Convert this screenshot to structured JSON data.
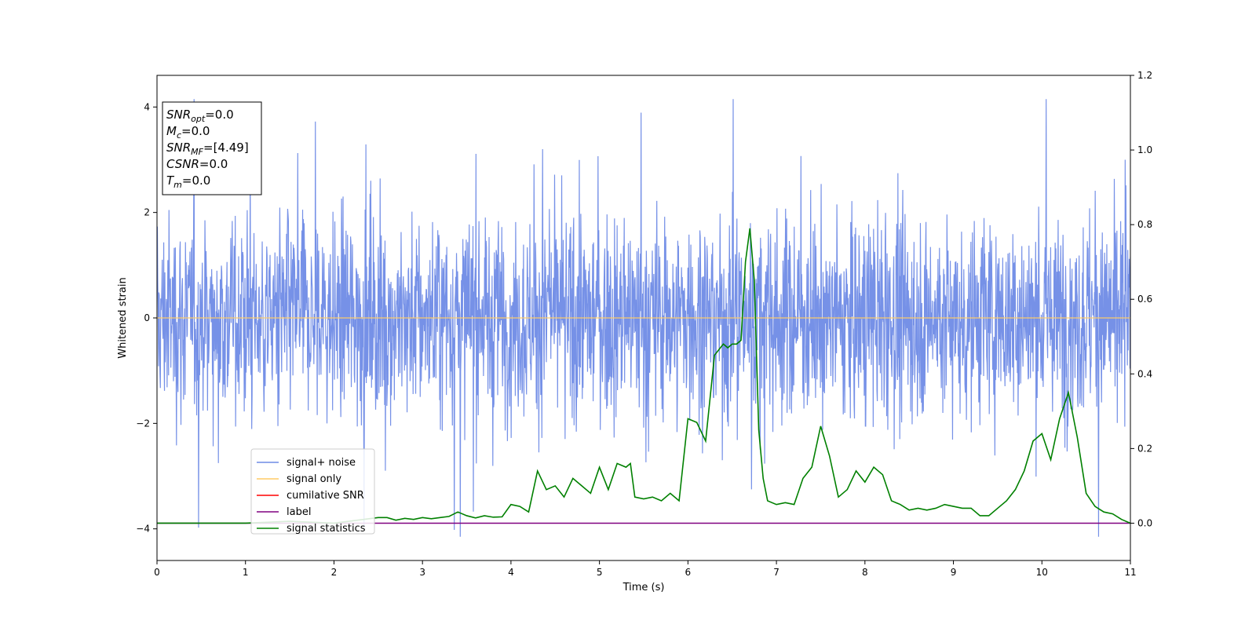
{
  "chart_data": {
    "type": "line",
    "xlabel": "Time (s)",
    "ylabel": "Whitened strain",
    "xlim": [
      0,
      11
    ],
    "ylim": [
      -4.6,
      4.6
    ],
    "y2lim": [
      -0.1,
      1.2
    ],
    "grid": false,
    "legend_position": "lower-left",
    "x_ticks": [
      0,
      1,
      2,
      3,
      4,
      5,
      6,
      7,
      8,
      9,
      10,
      11
    ],
    "y_ticks": [
      -4,
      -2,
      0,
      2,
      4
    ],
    "y2_ticks": [
      "0.0",
      "0.2",
      "0.4",
      "0.6",
      "0.8",
      "1.0",
      "1.2"
    ],
    "annotation": {
      "lines": [
        {
          "name": "SNR",
          "sub": "opt",
          "value": "=0.0"
        },
        {
          "name": "M",
          "sub": "c",
          "value": "=0.0"
        },
        {
          "name": "SNR",
          "sub": "MF",
          "value": "=[4.49]"
        },
        {
          "name": "CSNR",
          "sub": "",
          "value": "=0.0"
        },
        {
          "name": "T",
          "sub": "m",
          "value": "=0.0"
        }
      ]
    },
    "series": [
      {
        "name": "signal+ noise",
        "color": "#6f8be6",
        "axis": "left",
        "kind": "noise",
        "amplitude_typical": 1.5,
        "min": -4.15,
        "max": 4.15
      },
      {
        "name": "signal only",
        "color": "#ffcc66",
        "axis": "left",
        "values_constant": 0.0
      },
      {
        "name": "cumilative SNR",
        "color": "#ff0000",
        "axis": "left",
        "values_constant": 0.0
      },
      {
        "name": "label",
        "color": "#800080",
        "axis": "right",
        "values_constant": 0.0
      },
      {
        "name": "signal statistics",
        "color": "#008000",
        "axis": "right",
        "x": [
          0,
          0.5,
          1.0,
          1.5,
          2.0,
          2.5,
          2.6,
          2.7,
          2.8,
          2.9,
          3.0,
          3.1,
          3.2,
          3.3,
          3.4,
          3.5,
          3.6,
          3.7,
          3.8,
          3.9,
          4.0,
          4.1,
          4.2,
          4.3,
          4.4,
          4.5,
          4.6,
          4.7,
          4.8,
          4.9,
          5.0,
          5.1,
          5.2,
          5.3,
          5.35,
          5.4,
          5.5,
          5.6,
          5.7,
          5.8,
          5.9,
          6.0,
          6.1,
          6.2,
          6.3,
          6.4,
          6.45,
          6.5,
          6.55,
          6.6,
          6.65,
          6.7,
          6.75,
          6.8,
          6.85,
          6.9,
          7.0,
          7.1,
          7.2,
          7.3,
          7.4,
          7.5,
          7.6,
          7.7,
          7.8,
          7.9,
          8.0,
          8.1,
          8.2,
          8.3,
          8.4,
          8.5,
          8.6,
          8.7,
          8.8,
          8.9,
          9.0,
          9.1,
          9.2,
          9.3,
          9.4,
          9.5,
          9.6,
          9.7,
          9.8,
          9.9,
          10.0,
          10.1,
          10.2,
          10.3,
          10.4,
          10.5,
          10.6,
          10.7,
          10.8,
          10.9,
          11.0
        ],
        "values": [
          0.0,
          0.0,
          0.0,
          0.005,
          0.0,
          0.015,
          0.015,
          0.008,
          0.013,
          0.01,
          0.015,
          0.012,
          0.015,
          0.018,
          0.03,
          0.02,
          0.014,
          0.02,
          0.016,
          0.017,
          0.05,
          0.045,
          0.03,
          0.14,
          0.09,
          0.1,
          0.07,
          0.12,
          0.1,
          0.08,
          0.15,
          0.09,
          0.16,
          0.15,
          0.16,
          0.07,
          0.065,
          0.07,
          0.06,
          0.08,
          0.06,
          0.28,
          0.27,
          0.22,
          0.45,
          0.48,
          0.47,
          0.48,
          0.48,
          0.49,
          0.7,
          0.79,
          0.65,
          0.25,
          0.12,
          0.06,
          0.05,
          0.055,
          0.05,
          0.12,
          0.15,
          0.26,
          0.18,
          0.07,
          0.09,
          0.14,
          0.11,
          0.15,
          0.13,
          0.06,
          0.05,
          0.035,
          0.04,
          0.035,
          0.04,
          0.05,
          0.045,
          0.04,
          0.04,
          0.02,
          0.02,
          0.04,
          0.06,
          0.09,
          0.14,
          0.22,
          0.24,
          0.17,
          0.28,
          0.35,
          0.23,
          0.08,
          0.045,
          0.03,
          0.025,
          0.01,
          0.0
        ]
      }
    ]
  }
}
